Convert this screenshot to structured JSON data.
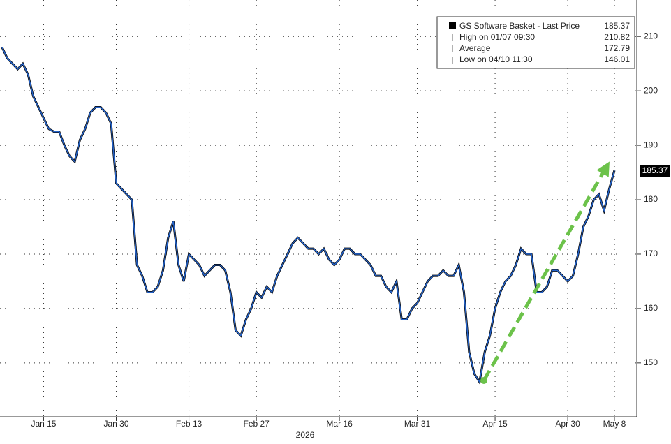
{
  "chart_data": {
    "type": "line",
    "x_label": "2026",
    "categories": [
      null,
      null,
      null,
      null,
      null,
      null,
      null,
      null,
      "Jan 15",
      null,
      null,
      null,
      null,
      null,
      null,
      null,
      null,
      null,
      null,
      null,
      null,
      null,
      "Jan 30",
      null,
      null,
      null,
      null,
      null,
      null,
      null,
      null,
      null,
      null,
      null,
      null,
      null,
      "Feb 13",
      null,
      null,
      null,
      null,
      null,
      null,
      null,
      null,
      null,
      null,
      null,
      null,
      "Feb 27",
      null,
      null,
      null,
      null,
      null,
      null,
      null,
      null,
      null,
      null,
      null,
      null,
      null,
      null,
      null,
      "Mar 16",
      null,
      null,
      null,
      null,
      null,
      null,
      null,
      null,
      null,
      null,
      null,
      null,
      null,
      null,
      "Mar 31",
      null,
      null,
      null,
      null,
      null,
      null,
      null,
      null,
      null,
      null,
      null,
      null,
      null,
      null,
      "Apr 15",
      null,
      null,
      null,
      null,
      null,
      null,
      null,
      null,
      null,
      null,
      null,
      null,
      null,
      "Apr 30",
      null,
      null,
      null,
      null,
      null,
      null,
      null,
      null,
      "May 8"
    ],
    "series": [
      {
        "name": "GS Software Basket - Last Price",
        "color": "#2563c9",
        "values": [
          208,
          206,
          205,
          204,
          205,
          203,
          199,
          197,
          195,
          193,
          192.5,
          192.5,
          190,
          188,
          187,
          191,
          193,
          196,
          197,
          197,
          196,
          194,
          183,
          182,
          181,
          180,
          168,
          166,
          163,
          163,
          164,
          167,
          173,
          176,
          168,
          165,
          170,
          169,
          168,
          166,
          167,
          168,
          168,
          167,
          163,
          156,
          155,
          158,
          160,
          163,
          162,
          164,
          163,
          166,
          168,
          170,
          172,
          173,
          172,
          171,
          171,
          170,
          171,
          169,
          168,
          169,
          171,
          171,
          170,
          170,
          169,
          168,
          166,
          166,
          164,
          163,
          165,
          158,
          158,
          160,
          161,
          163,
          165,
          166,
          166,
          167,
          166,
          166,
          168,
          163,
          152,
          148,
          146.5,
          152,
          155,
          160,
          163,
          165,
          166,
          168,
          171,
          170,
          170,
          163,
          163,
          164,
          167,
          167,
          166,
          165,
          166,
          170,
          175,
          177,
          180,
          181,
          178,
          182,
          185.37
        ]
      }
    ],
    "last_price": 185.37,
    "legend": [
      {
        "label": "High on 01/07 09:30",
        "value": 210.82
      },
      {
        "label": "Average",
        "value": 172.79
      },
      {
        "label": "Low on 04/10 11:30",
        "value": 146.01
      }
    ],
    "ylim": [
      140.1,
      216.7
    ],
    "yticks": [
      150,
      160,
      170,
      180,
      190,
      200,
      210
    ],
    "grid": true
  }
}
